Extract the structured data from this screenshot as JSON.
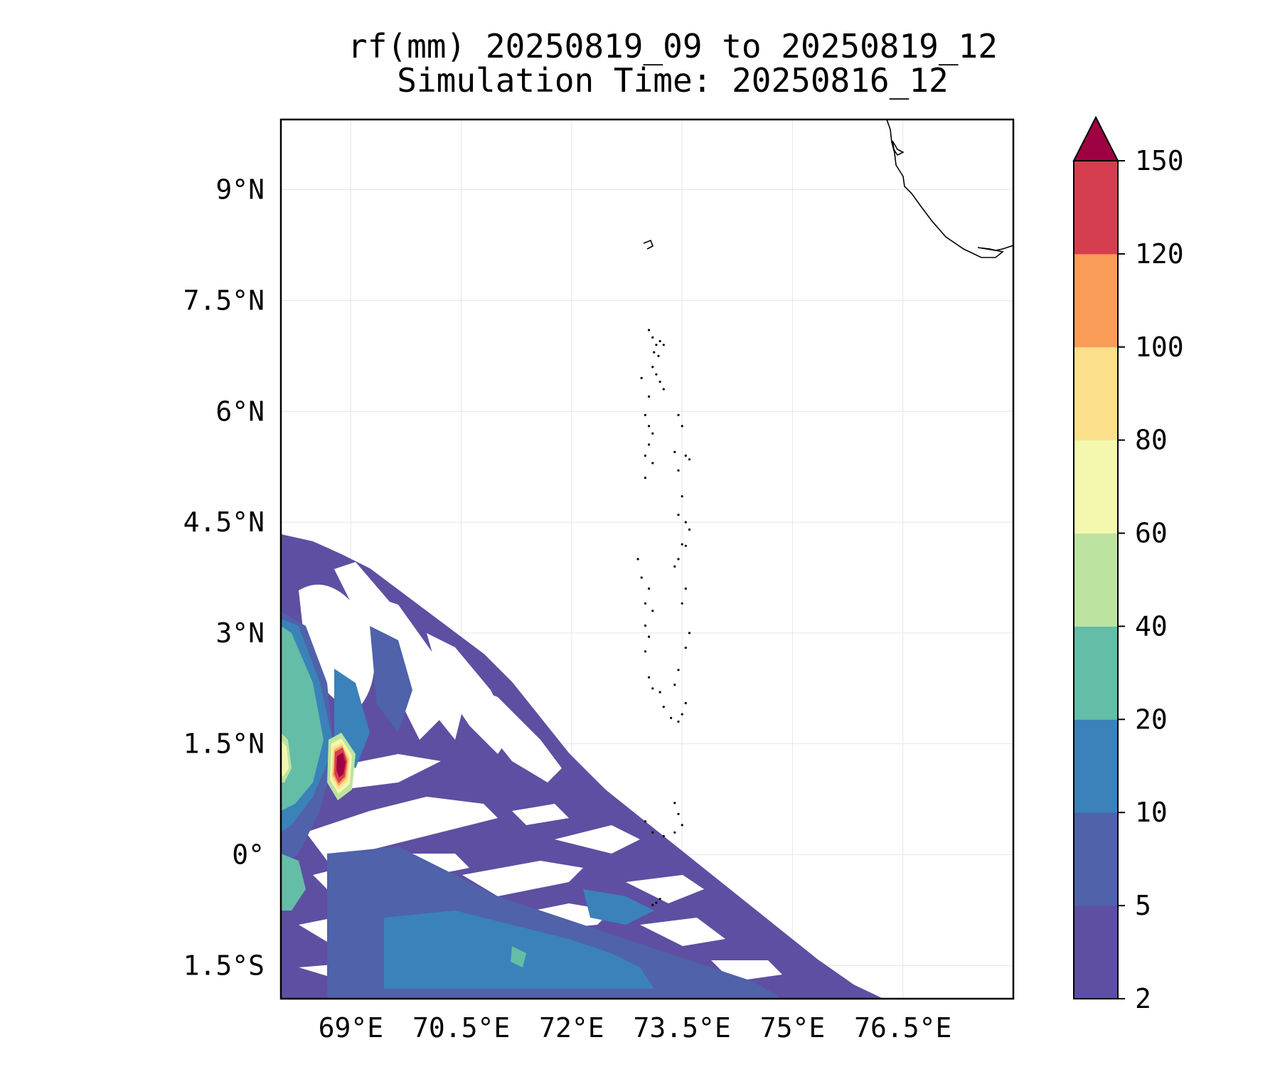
{
  "title": {
    "line1": "rf(mm) 20250819_09 to 20250819_12",
    "line2": "Simulation Time: 20250816_12"
  },
  "map": {
    "lon_range": [
      68.05,
      78.0
    ],
    "lat_range": [
      -1.95,
      9.95
    ],
    "lon_ticks": [
      {
        "value": 69.0,
        "label": "69°E"
      },
      {
        "value": 70.5,
        "label": "70.5°E"
      },
      {
        "value": 72.0,
        "label": "72°E"
      },
      {
        "value": 73.5,
        "label": "73.5°E"
      },
      {
        "value": 75.0,
        "label": "75°E"
      },
      {
        "value": 76.5,
        "label": "76.5°E"
      }
    ],
    "lat_ticks": [
      {
        "value": 9.0,
        "label": "9°N"
      },
      {
        "value": 7.5,
        "label": "7.5°N"
      },
      {
        "value": 6.0,
        "label": "6°N"
      },
      {
        "value": 4.5,
        "label": "4.5°N"
      },
      {
        "value": 3.0,
        "label": "3°N"
      },
      {
        "value": 1.5,
        "label": "1.5°N"
      },
      {
        "value": 0.0,
        "label": "0°"
      },
      {
        "value": -1.5,
        "label": "1.5°S"
      }
    ],
    "gridlines": true,
    "coastline": "southern India tip (top-right) and Maldives atoll chain"
  },
  "colorbar": {
    "levels": [
      "2",
      "5",
      "10",
      "20",
      "40",
      "60",
      "80",
      "100",
      "120",
      "150"
    ],
    "colors": [
      "#5e4fa2",
      "#4f62aa",
      "#3a82b9",
      "#64bda7",
      "#bce4a0",
      "#f3f8ae",
      "#fde08b",
      "#f99d58",
      "#d53e4f"
    ],
    "extend_color": "#9e0142",
    "extend": "max"
  }
}
